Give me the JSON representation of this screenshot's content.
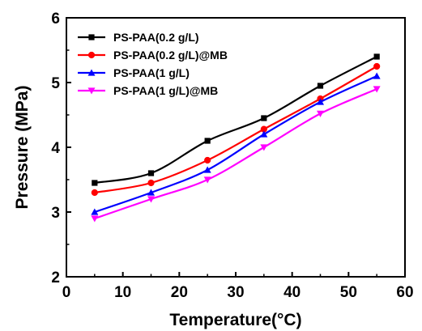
{
  "chart_data": {
    "type": "line",
    "xlabel": "Temperature(°C)",
    "ylabel": "Pressure (MPa)",
    "xlim": [
      0,
      60
    ],
    "ylim": [
      2,
      6
    ],
    "xticks": [
      "0",
      "10",
      "20",
      "30",
      "40",
      "50",
      "60"
    ],
    "yticks": [
      "2",
      "3",
      "4",
      "5",
      "6"
    ],
    "grid": false,
    "legend_position": "top-left",
    "x": [
      5,
      15,
      25,
      35,
      45,
      55
    ],
    "series": [
      {
        "name": "PS-PAA(0.2 g/L)",
        "color": "#000000",
        "marker": "square",
        "values": [
          3.45,
          3.6,
          4.1,
          4.45,
          4.95,
          5.4
        ]
      },
      {
        "name": "PS-PAA(0.2 g/L)@MB",
        "color": "#ff0000",
        "marker": "circle",
        "values": [
          3.3,
          3.45,
          3.8,
          4.28,
          4.75,
          5.25
        ]
      },
      {
        "name": "PS-PAA(1 g/L)",
        "color": "#0000ff",
        "marker": "triangle-up",
        "values": [
          3.0,
          3.3,
          3.65,
          4.2,
          4.7,
          5.1
        ]
      },
      {
        "name": "PS-PAA(1 g/L)@MB",
        "color": "#ff00ff",
        "marker": "triangle-down",
        "values": [
          2.9,
          3.2,
          3.5,
          4.0,
          4.52,
          4.9
        ]
      }
    ]
  }
}
